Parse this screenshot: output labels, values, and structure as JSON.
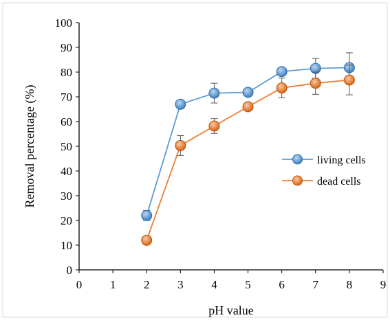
{
  "chart_data": {
    "type": "scatter",
    "xlabel": "pH value",
    "ylabel": "Removal percentage (%)",
    "xlim": [
      0,
      9
    ],
    "ylim": [
      0,
      100
    ],
    "xticks": [
      0,
      1,
      2,
      3,
      4,
      5,
      6,
      7,
      8,
      9
    ],
    "yticks": [
      0,
      10,
      20,
      30,
      40,
      50,
      60,
      70,
      80,
      90,
      100
    ],
    "grid": false,
    "legend_position": "right",
    "series": [
      {
        "name": "living cells",
        "color": "#5B9BD5",
        "x": [
          2,
          3,
          4,
          5,
          6,
          7,
          8
        ],
        "y": [
          22,
          67,
          71.5,
          71.8,
          80.2,
          81.5,
          81.8
        ],
        "error": [
          2,
          0,
          4,
          0,
          0,
          4,
          6
        ]
      },
      {
        "name": "dead cells",
        "color": "#ED7D31",
        "x": [
          2,
          3,
          4,
          5,
          6,
          7,
          8
        ],
        "y": [
          12,
          50.3,
          58.2,
          66,
          73.6,
          75.5,
          76.8
        ],
        "error": [
          0,
          4,
          3,
          0,
          4,
          4.5,
          6
        ]
      }
    ]
  }
}
